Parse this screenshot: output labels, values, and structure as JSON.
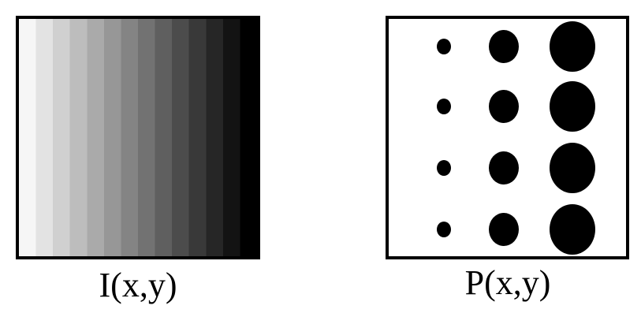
{
  "panels": {
    "intensity": {
      "caption": "I(x,y)",
      "gradient": {
        "start_color": "#f6f6f6",
        "end_color": "#000000",
        "direction": "left-to-right",
        "bands": 14
      }
    },
    "pattern": {
      "caption": "P(x,y)",
      "dot_color": "#000000",
      "columns": 3,
      "rows": 4,
      "dot_size_levels": [
        "small",
        "medium",
        "large"
      ]
    }
  },
  "colors": {
    "background": "#ffffff",
    "border": "#000000"
  }
}
